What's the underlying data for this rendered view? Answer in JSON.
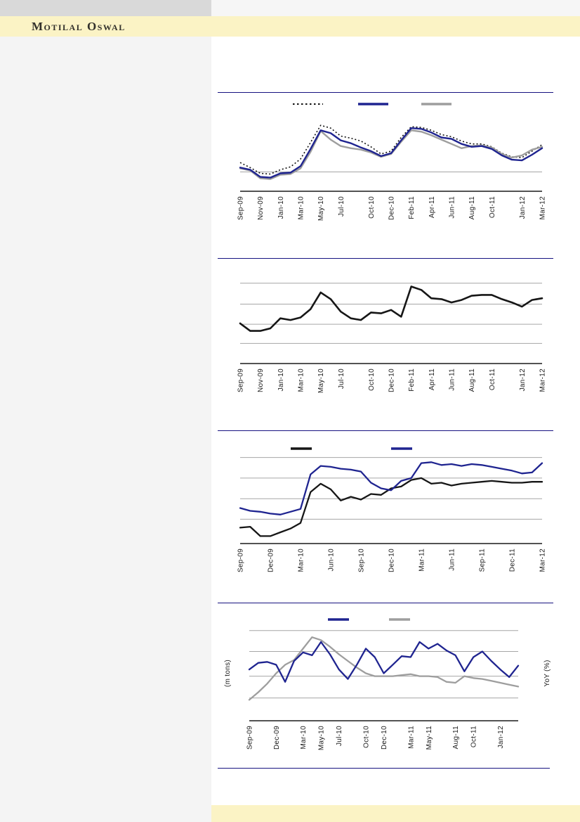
{
  "brand": {
    "name": "Motilal Oswal"
  },
  "colors": {
    "accent_navy": "#161280",
    "brand_banner_yellow": "#FBF3C5",
    "sidebar_gray": "#F4F4F4",
    "top_bar_gray": "#D9D9D9",
    "top_right_strip": "#F6F6F6",
    "line_navy": "#1F2490",
    "line_gray": "#9E9E9E",
    "line_black": "#161616",
    "gridline_gray": "#A6A6A6",
    "text_dark": "#1A1A1A"
  },
  "chart_data": [
    {
      "id": "chart-1",
      "type": "line",
      "title": "",
      "x_domain": "monthly Sep-09 to Mar-12",
      "n_points": 31,
      "x_tick_labels": [
        "Sep-09",
        "Nov-09",
        "Jan-10",
        "Mar-10",
        "May-10",
        "Jul-10",
        "Oct-10",
        "Dec-10",
        "Feb-11",
        "Apr-11",
        "Jun-11",
        "Aug-11",
        "Oct-11",
        "Jan-12",
        "Mar-12"
      ],
      "x_tick_month_indices": [
        0,
        2,
        4,
        6,
        8,
        10,
        13,
        15,
        17,
        19,
        21,
        23,
        25,
        28,
        30
      ],
      "y_axis_labels_visible": false,
      "values_unit": "percent of plot height (no y-axis numbers shown in image)",
      "gridlines_pct": [
        27
      ],
      "legend_labels_visible": false,
      "series": [
        {
          "key": "dotted-black",
          "label": "",
          "style": "dotted",
          "color": "#111111",
          "values_pct": [
            40,
            33,
            25,
            24,
            30,
            34,
            45,
            68,
            92,
            88,
            77,
            74,
            70,
            62,
            52,
            56,
            75,
            90,
            89,
            85,
            79,
            76,
            70,
            66,
            66,
            62,
            53,
            48,
            47,
            56,
            65
          ]
        },
        {
          "key": "navy",
          "label": "",
          "style": "solid",
          "color": "#1F2490",
          "values_pct": [
            33,
            30,
            20,
            19,
            25,
            26,
            35,
            59,
            85,
            81,
            71,
            67,
            61,
            56,
            49,
            53,
            71,
            88,
            87,
            82,
            75,
            73,
            66,
            62,
            63,
            59,
            50,
            44,
            43,
            51,
            60
          ]
        },
        {
          "key": "gray",
          "label": "",
          "style": "solid",
          "color": "#9E9E9E",
          "values_pct": [
            32,
            29,
            18,
            17,
            23,
            24,
            32,
            55,
            84,
            72,
            63,
            60,
            58,
            54,
            48,
            52,
            69,
            85,
            83,
            78,
            72,
            66,
            60,
            63,
            64,
            61,
            52,
            47,
            50,
            58,
            62
          ]
        }
      ]
    },
    {
      "id": "chart-2",
      "type": "line",
      "title": "",
      "x_domain": "monthly Sep-09 to Mar-12",
      "n_points": 31,
      "x_tick_labels": [
        "Sep-09",
        "Nov-09",
        "Jan-10",
        "Mar-10",
        "May-10",
        "Jul-10",
        "Oct-10",
        "Dec-10",
        "Feb-11",
        "Apr-11",
        "Jun-11",
        "Aug-11",
        "Oct-11",
        "Jan-12",
        "Mar-12"
      ],
      "x_tick_month_indices": [
        0,
        2,
        4,
        6,
        8,
        10,
        13,
        15,
        17,
        19,
        21,
        23,
        25,
        28,
        30
      ],
      "y_axis_labels_visible": false,
      "values_unit": "percent of plot height (no y-axis numbers shown in image)",
      "gridlines_pct": [
        96,
        71,
        47,
        24
      ],
      "legend_labels_visible": false,
      "series": [
        {
          "key": "black",
          "label": "",
          "style": "solid",
          "color": "#161616",
          "values_pct": [
            48,
            39,
            39,
            42,
            54,
            52,
            55,
            65,
            85,
            77,
            62,
            54,
            52,
            61,
            60,
            64,
            56,
            92,
            88,
            78,
            77,
            73,
            76,
            81,
            82,
            82,
            77,
            73,
            68,
            76,
            78
          ]
        }
      ]
    },
    {
      "id": "chart-3",
      "type": "line",
      "title": "",
      "x_domain": "monthly Sep-09 to Mar-12",
      "n_points": 31,
      "x_tick_labels": [
        "Sep-09",
        "Dec-09",
        "Mar-10",
        "Jun-10",
        "Sep-10",
        "Dec-10",
        "Mar-11",
        "Jun-11",
        "Sep-11",
        "Dec-11",
        "Mar-12"
      ],
      "x_tick_month_indices": [
        0,
        3,
        6,
        9,
        12,
        15,
        18,
        21,
        24,
        27,
        30
      ],
      "y_axis_labels_visible": false,
      "values_unit": "percent of plot height (no y-axis numbers shown in image)",
      "gridlines_pct": [
        92,
        70,
        48,
        26
      ],
      "legend_labels_visible": false,
      "series": [
        {
          "key": "black",
          "label": "",
          "style": "solid",
          "color": "#161616",
          "values_pct": [
            17,
            18,
            8,
            8,
            12,
            16,
            22,
            55,
            64,
            58,
            46,
            50,
            47,
            53,
            52,
            59,
            61,
            68,
            70,
            64,
            65,
            62,
            64,
            65,
            66,
            67,
            66,
            65,
            65,
            66,
            66
          ]
        },
        {
          "key": "navy",
          "label": "",
          "style": "solid",
          "color": "#1F2490",
          "values_pct": [
            38,
            35,
            34,
            32,
            31,
            34,
            37,
            74,
            83,
            82,
            80,
            79,
            77,
            65,
            59,
            57,
            67,
            70,
            86,
            87,
            84,
            85,
            83,
            85,
            84,
            82,
            80,
            78,
            75,
            76,
            86
          ]
        }
      ]
    },
    {
      "id": "chart-4",
      "type": "line",
      "title": "",
      "ylabel_left": "(m tons)",
      "ylabel_right": "YoY (%)",
      "x_domain": "monthly Sep-09 to Mar-12",
      "n_points": 31,
      "x_tick_labels": [
        "Sep-09",
        "Dec-09",
        "Mar-10",
        "May-10",
        "Jul-10",
        "Oct-10",
        "Dec-10",
        "Mar-11",
        "May-11",
        "Aug-11",
        "Oct-11",
        "Jan-12"
      ],
      "x_tick_month_indices": [
        0,
        3,
        6,
        8,
        10,
        13,
        15,
        18,
        20,
        23,
        25,
        28
      ],
      "y_axis_labels_visible": false,
      "values_unit": "percent of plot height (no y-axis numbers shown in image)",
      "gridlines_pct": [
        95,
        73,
        47,
        24
      ],
      "legend_labels_visible": false,
      "series": [
        {
          "key": "navy",
          "label": "",
          "style": "solid",
          "color": "#1F2490",
          "values_pct": [
            54,
            61,
            62,
            59,
            41,
            63,
            72,
            69,
            83,
            70,
            54,
            44,
            59,
            76,
            67,
            50,
            59,
            68,
            67,
            83,
            76,
            81,
            74,
            69,
            52,
            67,
            73,
            63,
            54,
            46,
            58
          ]
        },
        {
          "key": "gray",
          "label": "",
          "style": "solid",
          "color": "#9E9E9E",
          "values_pct": [
            22,
            30,
            39,
            50,
            59,
            64,
            76,
            88,
            85,
            78,
            70,
            63,
            56,
            50,
            47,
            47,
            47,
            48,
            49,
            47,
            47,
            46,
            41,
            40,
            47,
            45,
            44,
            42,
            40,
            38,
            36
          ]
        }
      ]
    }
  ]
}
